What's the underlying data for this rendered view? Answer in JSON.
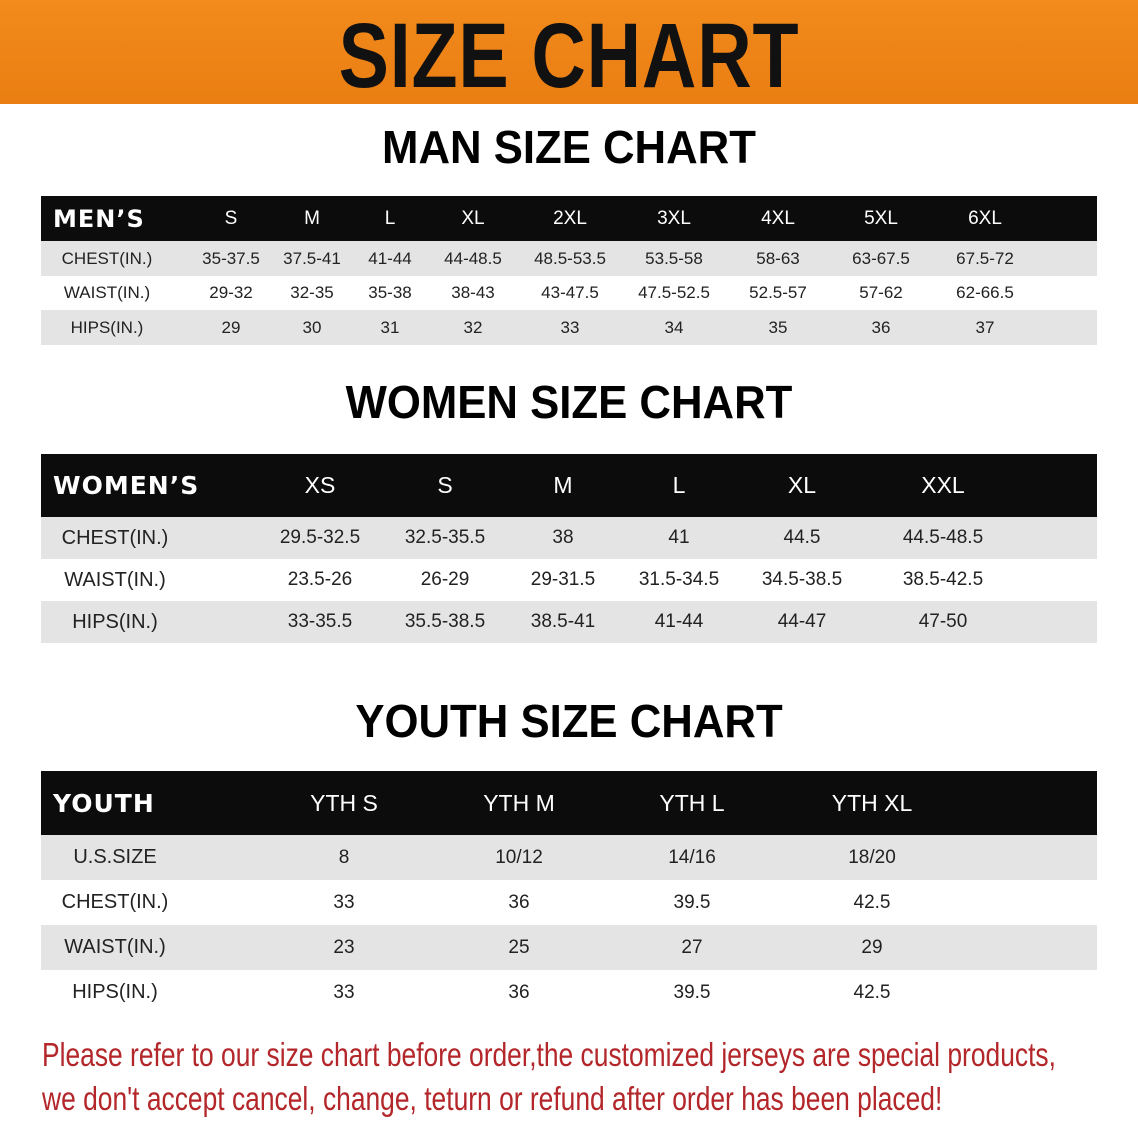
{
  "banner": {
    "title": "SIZE CHART",
    "color": "#ee8418"
  },
  "men": {
    "title": "MAN SIZE CHART",
    "header": [
      "MEN’S",
      "S",
      "M",
      "L",
      "XL",
      "2XL",
      "3XL",
      "4XL",
      "5XL",
      "6XL"
    ],
    "rows": [
      [
        "CHEST(IN.)",
        "35-37.5",
        "37.5-41",
        "41-44",
        "44-48.5",
        "48.5-53.5",
        "53.5-58",
        "58-63",
        "63-67.5",
        "67.5-72"
      ],
      [
        "WAIST(IN.)",
        "29-32",
        "32-35",
        "35-38",
        "38-43",
        "43-47.5",
        "47.5-52.5",
        "52.5-57",
        "57-62",
        "62-66.5"
      ],
      [
        "HIPS(IN.)",
        "29",
        "30",
        "31",
        "32",
        "33",
        "34",
        "35",
        "36",
        "37"
      ]
    ]
  },
  "women": {
    "title": "WOMEN SIZE CHART",
    "header": [
      "WOMEN’S",
      "XS",
      "S",
      "M",
      "L",
      "XL",
      "XXL"
    ],
    "rows": [
      [
        "CHEST(IN.)",
        "29.5-32.5",
        "32.5-35.5",
        "38",
        "41",
        "44.5",
        "44.5-48.5"
      ],
      [
        "WAIST(IN.)",
        "23.5-26",
        "26-29",
        "29-31.5",
        "31.5-34.5",
        "34.5-38.5",
        "38.5-42.5"
      ],
      [
        "HIPS(IN.)",
        "33-35.5",
        "35.5-38.5",
        "38.5-41",
        "41-44",
        "44-47",
        "47-50"
      ]
    ]
  },
  "youth": {
    "title": "YOUTH SIZE CHART",
    "header": [
      "YOUTH",
      "YTH S",
      "YTH M",
      "YTH L",
      "YTH XL"
    ],
    "rows": [
      [
        "U.S.SIZE",
        "8",
        "10/12",
        "14/16",
        "18/20"
      ],
      [
        "CHEST(IN.)",
        "33",
        "36",
        "39.5",
        "42.5"
      ],
      [
        "WAIST(IN.)",
        "23",
        "25",
        "27",
        "29"
      ],
      [
        "HIPS(IN.)",
        "33",
        "36",
        "39.5",
        "42.5"
      ]
    ]
  },
  "notice": {
    "line1": "Please refer to our size chart before order,the customized jerseys are special products,",
    "line2": "we don't accept cancel, change, teturn or refund after order has been placed!",
    "color": "#b3262a"
  }
}
